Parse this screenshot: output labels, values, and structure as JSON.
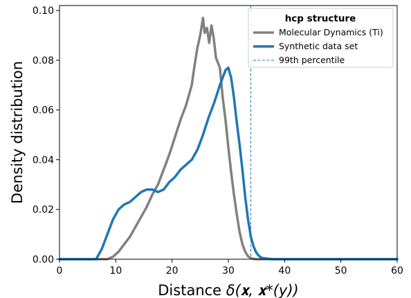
{
  "chart_data": {
    "type": "line",
    "xlabel_prefix": "Distance ",
    "xlabel_math": "δ(𝐱, 𝐱*(y))",
    "ylabel": "Density distribution",
    "xlim": [
      0,
      60
    ],
    "ylim": [
      0,
      0.102
    ],
    "xticks": [
      0,
      10,
      20,
      30,
      40,
      50,
      60
    ],
    "xtick_labels": [
      "0",
      "10",
      "20",
      "30",
      "40",
      "50",
      "60"
    ],
    "yticks": [
      0,
      0.02,
      0.04,
      0.06,
      0.08,
      0.1
    ],
    "ytick_labels": [
      "0.00",
      "0.02",
      "0.04",
      "0.06",
      "0.08",
      "0.10"
    ],
    "grid": false,
    "legend": {
      "title": "hcp structure",
      "placement": "top-right",
      "entries": [
        "Molecular Dynamics (Ti)",
        "Synthetic data set",
        "99th percentile"
      ]
    },
    "series": [
      {
        "name": "Molecular Dynamics (Ti)",
        "color": "#808080",
        "style": "solid",
        "x": [
          0,
          8.5,
          9.5,
          10.5,
          11.5,
          12.5,
          13.5,
          14.5,
          15.5,
          16.5,
          17.5,
          18.5,
          19.5,
          20.5,
          21.5,
          22.5,
          23.5,
          24,
          24.5,
          25,
          25.5,
          25.8,
          26.2,
          26.6,
          27,
          27.4,
          27.8,
          28.5,
          29,
          29.5,
          30,
          30.5,
          31,
          31.5,
          32,
          32.5,
          33,
          33.5,
          34,
          34.5,
          35,
          60
        ],
        "y": [
          0,
          0,
          0.001,
          0.003,
          0.006,
          0.009,
          0.013,
          0.017,
          0.021,
          0.026,
          0.03,
          0.036,
          0.042,
          0.049,
          0.056,
          0.062,
          0.07,
          0.078,
          0.085,
          0.09,
          0.097,
          0.091,
          0.093,
          0.087,
          0.094,
          0.089,
          0.081,
          0.077,
          0.065,
          0.056,
          0.045,
          0.035,
          0.026,
          0.018,
          0.011,
          0.006,
          0.003,
          0.0012,
          0.0004,
          0.0001,
          0,
          0
        ]
      },
      {
        "name": "Synthetic data set",
        "color": "#1f77b4",
        "style": "solid",
        "x": [
          0,
          6.5,
          7.5,
          8.5,
          9.5,
          10.5,
          11.5,
          12.5,
          13.5,
          14.5,
          15.5,
          16.5,
          17.5,
          18.5,
          19.5,
          20.5,
          21.5,
          22.5,
          23.5,
          24.5,
          25.5,
          26.5,
          27.5,
          28.5,
          29,
          29.5,
          30,
          30.5,
          31,
          31.5,
          32,
          32.5,
          33,
          33.5,
          34,
          34.5,
          35,
          35.5,
          36,
          37,
          38,
          60
        ],
        "y": [
          0,
          0,
          0.004,
          0.01,
          0.016,
          0.02,
          0.022,
          0.023,
          0.025,
          0.027,
          0.028,
          0.028,
          0.027,
          0.028,
          0.031,
          0.033,
          0.036,
          0.038,
          0.04,
          0.044,
          0.05,
          0.057,
          0.063,
          0.07,
          0.073,
          0.076,
          0.077,
          0.073,
          0.065,
          0.055,
          0.046,
          0.036,
          0.025,
          0.016,
          0.009,
          0.005,
          0.0025,
          0.0012,
          0.0005,
          0.0002,
          0,
          0
        ]
      }
    ],
    "percentile_line": {
      "name": "99th percentile",
      "x": 34,
      "color": "#1f77b4",
      "style": "dashed"
    }
  }
}
